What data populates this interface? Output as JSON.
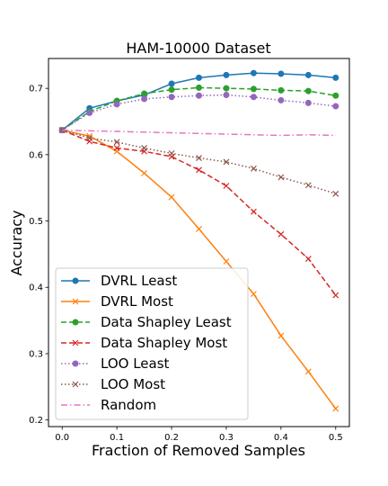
{
  "chart_data": {
    "type": "line",
    "title": "HAM-10000 Dataset",
    "xlabel": "Fraction of Removed Samples",
    "ylabel": "Accuracy",
    "xlim": [
      -0.025,
      0.525
    ],
    "ylim": [
      0.19,
      0.745
    ],
    "xticks": [
      0.0,
      0.1,
      0.2,
      0.3,
      0.4,
      0.5
    ],
    "xtick_labels": [
      "0.0",
      "0.1",
      "0.2",
      "0.3",
      "0.4",
      "0.5"
    ],
    "yticks": [
      0.2,
      0.3,
      0.4,
      0.5,
      0.6,
      0.7
    ],
    "ytick_labels": [
      "0.2",
      "0.3",
      "0.4",
      "0.5",
      "0.6",
      "0.7"
    ],
    "grid": false,
    "legend_position": "lower-left",
    "x": [
      0.0,
      0.05,
      0.1,
      0.15,
      0.2,
      0.25,
      0.3,
      0.35,
      0.4,
      0.45,
      0.5
    ],
    "series": [
      {
        "name": "DVRL Least",
        "color": "#1f77b4",
        "line": "solid",
        "marker": "circle",
        "values": [
          0.637,
          0.67,
          0.681,
          0.69,
          0.707,
          0.716,
          0.72,
          0.723,
          0.722,
          0.72,
          0.716
        ]
      },
      {
        "name": "DVRL Most",
        "color": "#ff7f0e",
        "line": "solid",
        "marker": "x",
        "values": [
          0.637,
          0.628,
          0.605,
          0.572,
          0.536,
          0.488,
          0.439,
          0.39,
          0.327,
          0.273,
          0.217
        ]
      },
      {
        "name": "Data Shapley Least",
        "color": "#2ca02c",
        "line": "dashed",
        "marker": "circle",
        "values": [
          0.637,
          0.665,
          0.681,
          0.692,
          0.698,
          0.701,
          0.7,
          0.699,
          0.697,
          0.696,
          0.689
        ]
      },
      {
        "name": "Data Shapley Most",
        "color": "#d62728",
        "line": "dashed",
        "marker": "x",
        "values": [
          0.637,
          0.62,
          0.61,
          0.605,
          0.597,
          0.577,
          0.553,
          0.514,
          0.48,
          0.443,
          0.388
        ]
      },
      {
        "name": "LOO Least",
        "color": "#9467bd",
        "line": "dotted",
        "marker": "circle",
        "values": [
          0.637,
          0.663,
          0.676,
          0.684,
          0.687,
          0.689,
          0.69,
          0.687,
          0.682,
          0.678,
          0.673
        ]
      },
      {
        "name": "LOO Most",
        "color": "#8c564b",
        "line": "dotted",
        "marker": "x",
        "values": [
          0.637,
          0.625,
          0.619,
          0.61,
          0.602,
          0.595,
          0.589,
          0.579,
          0.566,
          0.554,
          0.541
        ]
      },
      {
        "name": "Random",
        "color": "#e377c2",
        "line": "dashdot",
        "marker": "none",
        "values": [
          0.637,
          0.636,
          0.635,
          0.634,
          0.633,
          0.632,
          0.631,
          0.63,
          0.629,
          0.63,
          0.629
        ]
      }
    ]
  }
}
